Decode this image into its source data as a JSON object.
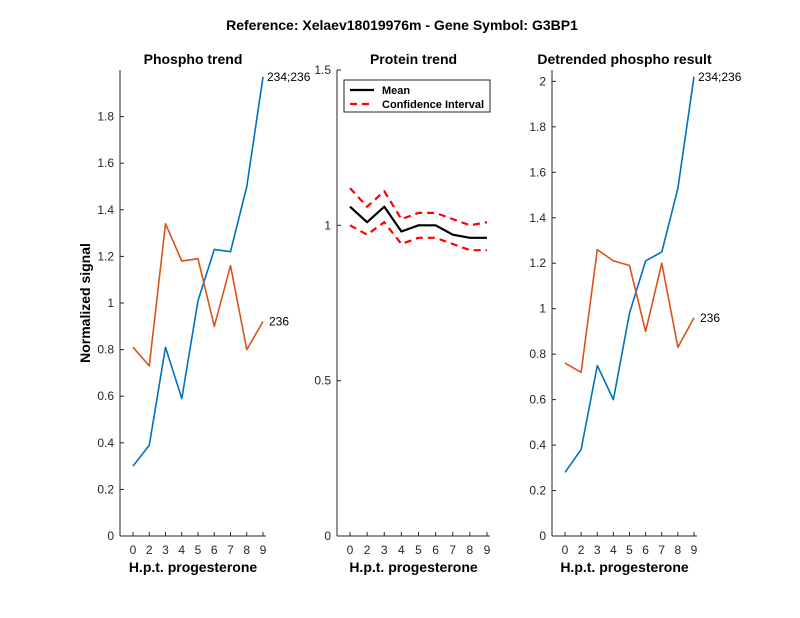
{
  "figure": {
    "suptitle": "Reference:  Xelaev18019976m - Gene Symbol:  G3BP1"
  },
  "colors": {
    "blue": "#0072BD",
    "orange": "#D95319",
    "mean": "#000000",
    "ci": "#FF0000"
  },
  "chart_data": [
    {
      "type": "line",
      "title": "Phospho trend",
      "xlabel": "H.p.t. progesterone",
      "ylabel": "Normalized signal",
      "categories": [
        "0",
        "2",
        "3",
        "4",
        "5",
        "6",
        "7",
        "8",
        "9"
      ],
      "ylim": [
        0,
        2.0
      ],
      "yticks": [
        "0",
        "0.2",
        "0.4",
        "0.6",
        "0.8",
        "1",
        "1.2",
        "1.4",
        "1.6",
        "1.8"
      ],
      "series": [
        {
          "name": "234;236",
          "color": "blue",
          "values": [
            0.3,
            0.39,
            0.81,
            0.59,
            1.01,
            1.23,
            1.22,
            1.5,
            1.97
          ]
        },
        {
          "name": "236",
          "color": "orange",
          "values": [
            0.81,
            0.73,
            1.34,
            1.18,
            1.19,
            0.9,
            1.16,
            0.8,
            0.92
          ]
        }
      ],
      "grid": false
    },
    {
      "type": "line",
      "title": "Protein trend",
      "xlabel": "H.p.t. progesterone",
      "ylabel": "",
      "categories": [
        "0",
        "2",
        "3",
        "4",
        "5",
        "6",
        "7",
        "8",
        "9"
      ],
      "ylim": [
        0,
        1.5
      ],
      "yticks": [
        "0",
        "0.5",
        "1",
        "1.5"
      ],
      "series": [
        {
          "name": "Mean",
          "color": "mean",
          "style": "solid",
          "values": [
            1.06,
            1.01,
            1.06,
            0.98,
            1.0,
            1.0,
            0.97,
            0.96,
            0.96
          ]
        },
        {
          "name": "Confidence Interval",
          "color": "ci",
          "style": "dashed",
          "values": [
            1.12,
            1.06,
            1.11,
            1.02,
            1.04,
            1.04,
            1.02,
            1.0,
            1.01
          ]
        },
        {
          "name": "",
          "color": "ci",
          "style": "dashed",
          "values": [
            1.0,
            0.97,
            1.01,
            0.94,
            0.96,
            0.96,
            0.94,
            0.92,
            0.92
          ]
        }
      ],
      "legend": {
        "position": "top-right",
        "entries": [
          "Mean",
          "Confidence Interval"
        ]
      },
      "grid": false
    },
    {
      "type": "line",
      "title": "Detrended phospho result",
      "xlabel": "H.p.t. progesterone",
      "ylabel": "",
      "categories": [
        "0",
        "2",
        "3",
        "4",
        "5",
        "6",
        "7",
        "8",
        "9"
      ],
      "ylim": [
        0,
        2.05
      ],
      "yticks": [
        "0",
        "0.2",
        "0.4",
        "0.6",
        "0.8",
        "1",
        "1.2",
        "1.4",
        "1.6",
        "1.8",
        "2"
      ],
      "series": [
        {
          "name": "234;236",
          "color": "blue",
          "values": [
            0.28,
            0.38,
            0.75,
            0.6,
            0.98,
            1.21,
            1.25,
            1.53,
            2.02
          ]
        },
        {
          "name": "236",
          "color": "orange",
          "values": [
            0.76,
            0.72,
            1.26,
            1.21,
            1.19,
            0.9,
            1.2,
            0.83,
            0.96
          ]
        }
      ],
      "grid": false
    }
  ]
}
